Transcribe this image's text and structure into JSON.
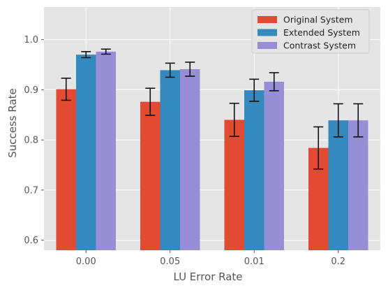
{
  "chart_data": {
    "type": "bar",
    "title": "",
    "xlabel": "LU Error Rate",
    "ylabel": "Success Rate",
    "categories": [
      "0.00",
      "0.05",
      "0.01",
      "0.2"
    ],
    "ylim": [
      0.58,
      1.065
    ],
    "yticks": [
      "0.6",
      "0.7",
      "0.8",
      "0.9",
      "1.0"
    ],
    "grid": true,
    "legend_position": "top-right",
    "series": [
      {
        "name": "Original System",
        "color": "#E24A33",
        "values": [
          0.901,
          0.876,
          0.84,
          0.784
        ],
        "errors": [
          0.022,
          0.027,
          0.033,
          0.042
        ]
      },
      {
        "name": "Extended System",
        "color": "#348ABD",
        "values": [
          0.97,
          0.939,
          0.899,
          0.839
        ],
        "errors": [
          0.006,
          0.014,
          0.022,
          0.033
        ]
      },
      {
        "name": "Contrast System",
        "color": "#988ED5",
        "values": [
          0.976,
          0.941,
          0.916,
          0.839
        ],
        "errors": [
          0.005,
          0.014,
          0.018,
          0.033
        ]
      }
    ],
    "plot_background": "#E5E5E5",
    "grid_color": "#FFFFFF"
  }
}
